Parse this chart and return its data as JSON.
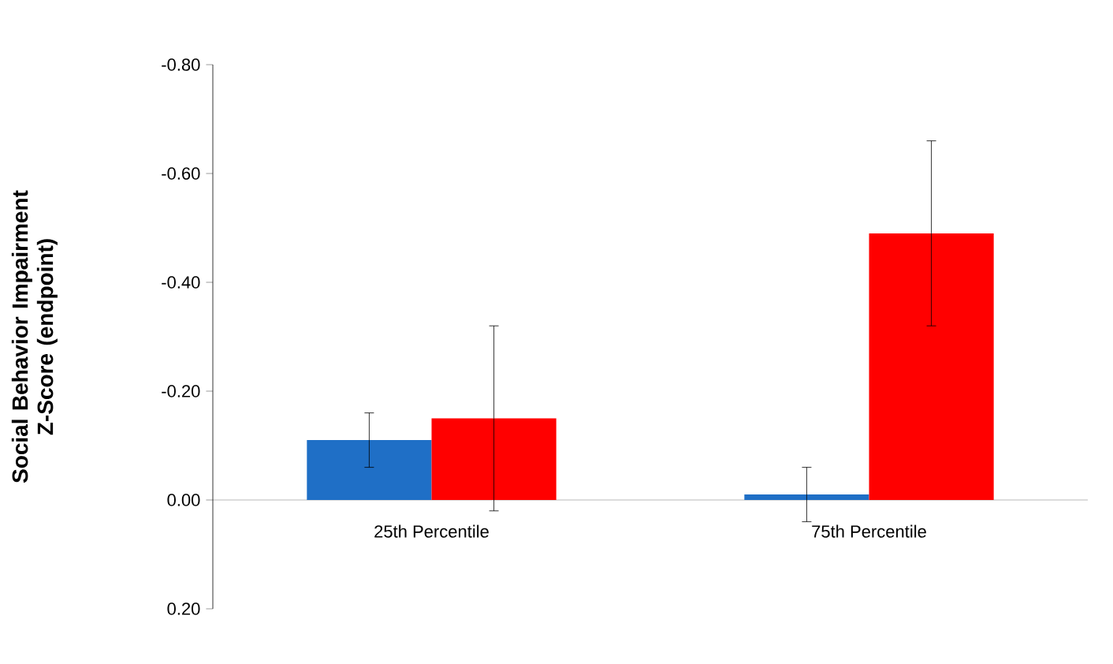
{
  "chart_data": {
    "type": "bar",
    "ylabel": "Social Behavior Impairment Z-Score (endpoint)",
    "categories": [
      "25th Percentile",
      "75th Percentile"
    ],
    "series": [
      {
        "color": "#1f6fc6",
        "values": [
          -0.11,
          -0.01
        ],
        "errors": [
          0.05,
          0.05
        ]
      },
      {
        "color": "#ff0000",
        "values": [
          -0.15,
          -0.49
        ],
        "errors": [
          0.17,
          0.17
        ]
      }
    ],
    "ylim": [
      0.2,
      -0.8
    ],
    "yticks": [
      {
        "value": -0.8,
        "label": "-0.80"
      },
      {
        "value": -0.6,
        "label": "-0.60"
      },
      {
        "value": -0.4,
        "label": "-0.40"
      },
      {
        "value": -0.2,
        "label": "-0.20"
      },
      {
        "value": 0,
        "label": "0.00"
      },
      {
        "value": 0.2,
        "label": "0.20"
      }
    ],
    "grid": false
  }
}
